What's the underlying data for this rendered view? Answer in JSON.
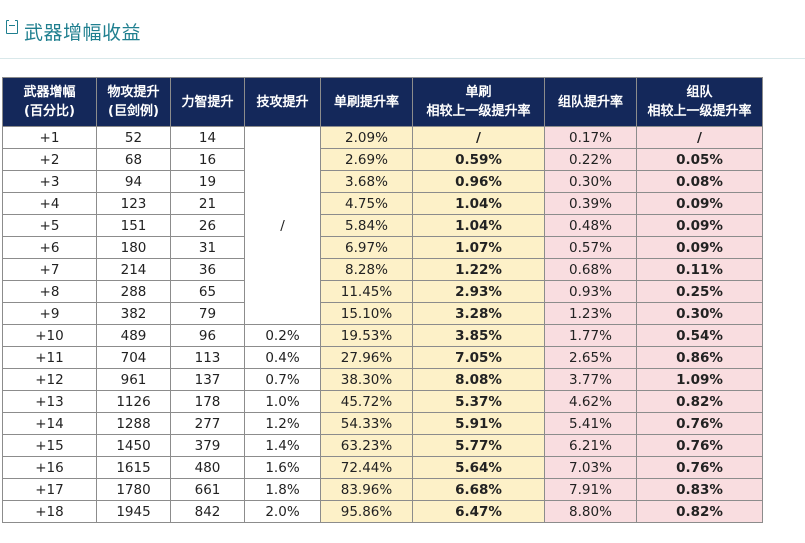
{
  "title": "武器增幅收益",
  "headers": [
    {
      "line1": "武器增幅",
      "line2": "(百分比)"
    },
    {
      "line1": "物攻提升",
      "line2": "(巨剑例)"
    },
    {
      "line1": "力智提升",
      "line2": ""
    },
    {
      "line1": "技攻提升",
      "line2": ""
    },
    {
      "line1": "单刷提升率",
      "line2": ""
    },
    {
      "line1": "单刷",
      "line2": "相较上一级提升率"
    },
    {
      "line1": "组队提升率",
      "line2": ""
    },
    {
      "line1": "组队",
      "line2": "相较上一级提升率"
    }
  ],
  "merged_skill_value": "/",
  "rows": [
    {
      "level": "+1",
      "phys": "52",
      "stat": "14",
      "skill": "",
      "solo": "2.09%",
      "solo_delta": "/",
      "team": "0.17%",
      "team_delta": "/"
    },
    {
      "level": "+2",
      "phys": "68",
      "stat": "16",
      "skill": "",
      "solo": "2.69%",
      "solo_delta": "0.59%",
      "team": "0.22%",
      "team_delta": "0.05%"
    },
    {
      "level": "+3",
      "phys": "94",
      "stat": "19",
      "skill": "",
      "solo": "3.68%",
      "solo_delta": "0.96%",
      "team": "0.30%",
      "team_delta": "0.08%"
    },
    {
      "level": "+4",
      "phys": "123",
      "stat": "21",
      "skill": "",
      "solo": "4.75%",
      "solo_delta": "1.04%",
      "team": "0.39%",
      "team_delta": "0.09%"
    },
    {
      "level": "+5",
      "phys": "151",
      "stat": "26",
      "skill": "",
      "solo": "5.84%",
      "solo_delta": "1.04%",
      "team": "0.48%",
      "team_delta": "0.09%"
    },
    {
      "level": "+6",
      "phys": "180",
      "stat": "31",
      "skill": "",
      "solo": "6.97%",
      "solo_delta": "1.07%",
      "team": "0.57%",
      "team_delta": "0.09%"
    },
    {
      "level": "+7",
      "phys": "214",
      "stat": "36",
      "skill": "",
      "solo": "8.28%",
      "solo_delta": "1.22%",
      "team": "0.68%",
      "team_delta": "0.11%"
    },
    {
      "level": "+8",
      "phys": "288",
      "stat": "65",
      "skill": "",
      "solo": "11.45%",
      "solo_delta": "2.93%",
      "team": "0.93%",
      "team_delta": "0.25%"
    },
    {
      "level": "+9",
      "phys": "382",
      "stat": "79",
      "skill": "",
      "solo": "15.10%",
      "solo_delta": "3.28%",
      "team": "1.23%",
      "team_delta": "0.30%"
    },
    {
      "level": "+10",
      "phys": "489",
      "stat": "96",
      "skill": "0.2%",
      "solo": "19.53%",
      "solo_delta": "3.85%",
      "team": "1.77%",
      "team_delta": "0.54%"
    },
    {
      "level": "+11",
      "phys": "704",
      "stat": "113",
      "skill": "0.4%",
      "solo": "27.96%",
      "solo_delta": "7.05%",
      "team": "2.65%",
      "team_delta": "0.86%"
    },
    {
      "level": "+12",
      "phys": "961",
      "stat": "137",
      "skill": "0.7%",
      "solo": "38.30%",
      "solo_delta": "8.08%",
      "team": "3.77%",
      "team_delta": "1.09%"
    },
    {
      "level": "+13",
      "phys": "1126",
      "stat": "178",
      "skill": "1.0%",
      "solo": "45.72%",
      "solo_delta": "5.37%",
      "team": "4.62%",
      "team_delta": "0.82%"
    },
    {
      "level": "+14",
      "phys": "1288",
      "stat": "277",
      "skill": "1.2%",
      "solo": "54.33%",
      "solo_delta": "5.91%",
      "team": "5.41%",
      "team_delta": "0.76%"
    },
    {
      "level": "+15",
      "phys": "1450",
      "stat": "379",
      "skill": "1.4%",
      "solo": "63.23%",
      "solo_delta": "5.77%",
      "team": "6.21%",
      "team_delta": "0.76%"
    },
    {
      "level": "+16",
      "phys": "1615",
      "stat": "480",
      "skill": "1.6%",
      "solo": "72.44%",
      "solo_delta": "5.64%",
      "team": "7.03%",
      "team_delta": "0.76%"
    },
    {
      "level": "+17",
      "phys": "1780",
      "stat": "661",
      "skill": "1.8%",
      "solo": "83.96%",
      "solo_delta": "6.68%",
      "team": "7.91%",
      "team_delta": "0.83%"
    },
    {
      "level": "+18",
      "phys": "1945",
      "stat": "842",
      "skill": "2.0%",
      "solo": "95.86%",
      "solo_delta": "6.47%",
      "team": "8.80%",
      "team_delta": "0.82%"
    }
  ],
  "colors": {
    "header_bg": "#14285a",
    "title": "#1f7f8f",
    "solo_bg": "#fdf1c8",
    "team_bg": "#f9dde0",
    "delta_text": "#e00000",
    "level_text": "#c0392b"
  }
}
